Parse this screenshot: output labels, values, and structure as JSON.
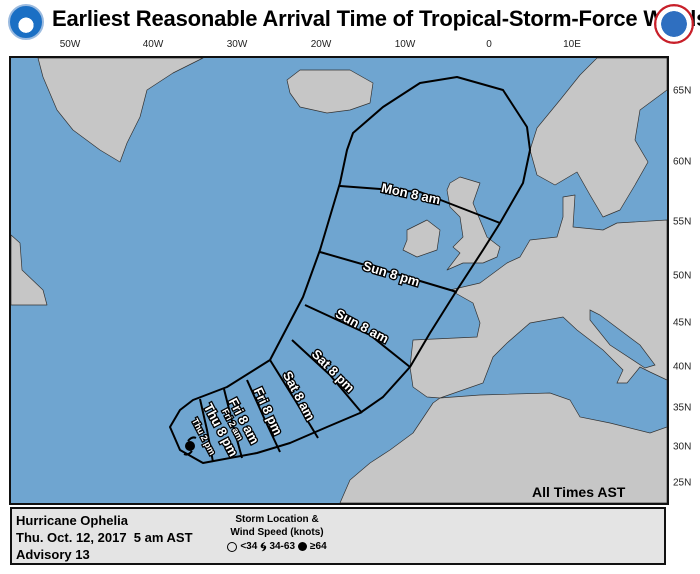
{
  "header": {
    "title": "Earliest Reasonable Arrival Time of Tropical-Storm-Force Winds",
    "left_logo": "NOAA",
    "right_logo": "National Weather Service"
  },
  "map": {
    "longitude_labels": [
      "50W",
      "40W",
      "30W",
      "20W",
      "10W",
      "0",
      "10E"
    ],
    "latitude_labels": [
      "65N",
      "60N",
      "55N",
      "50N",
      "45N",
      "40N",
      "35N",
      "30N",
      "25N"
    ],
    "arrival_times": [
      "Thu 2 pm",
      "Thu 8 pm",
      "Fri 2 am",
      "Fri 8 am",
      "Fri 8 pm",
      "Sat 8 am",
      "Sat 8 pm",
      "Sun 8 am",
      "Sun 8 pm",
      "Mon 8 am"
    ],
    "time_zone_note": "All Times AST",
    "colors": {
      "ocean": "#6fa5d0",
      "land": "#c6c6c6",
      "contour": "#000000"
    },
    "storm_icon": "hurricane-icon"
  },
  "legend": {
    "storm_name": "Hurricane Ophelia",
    "issued": "Thu. Oct. 12, 2017  5 am AST",
    "advisory": "Advisory 13",
    "key_title_1": "Storm Location &",
    "key_title_2": "Wind Speed (knots)",
    "items": [
      {
        "icon": "circle-icon",
        "label": "<34"
      },
      {
        "icon": "tropical-storm-icon",
        "label": "34-63"
      },
      {
        "icon": "hurricane-icon",
        "label": "≥64"
      }
    ]
  }
}
